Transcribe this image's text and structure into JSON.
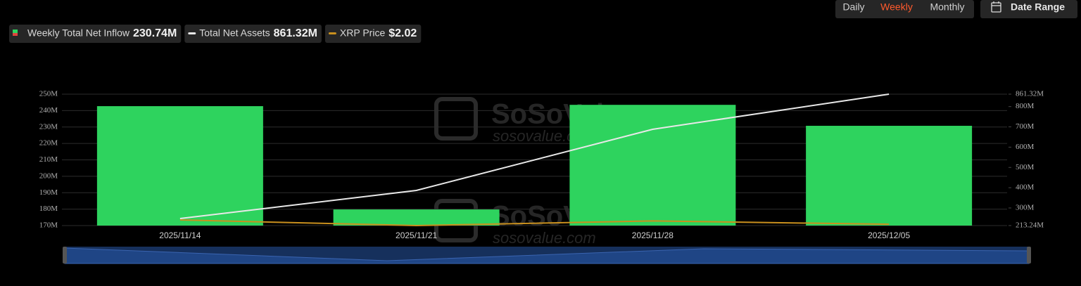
{
  "controls": {
    "periods": [
      "Daily",
      "Weekly",
      "Monthly"
    ],
    "active_index": 1,
    "date_range": "Date Range"
  },
  "chart_data": {
    "type": "combo",
    "watermark": {
      "brand": "SoSoValue",
      "site": "sosovalue.com"
    },
    "categories": [
      "2025/11/14",
      "2025/11/21",
      "2025/11/28",
      "2025/12/05"
    ],
    "series": [
      {
        "name": "Weekly Total Net Inflow",
        "legend_value": "230.74M",
        "type": "bar",
        "color": "#2ed35e",
        "values": [
          242.7,
          179.8,
          243.5,
          230.74
        ]
      },
      {
        "name": "Total Net Assets",
        "legend_value": "861.32M",
        "type": "line",
        "axis": "y2",
        "color": "#e8e8e8",
        "values": [
          248,
          386.5,
          688,
          861.32
        ]
      },
      {
        "name": "XRP Price",
        "legend_value": "$2.02",
        "type": "line",
        "axis": "y3",
        "color": "#c9901e",
        "values": [
          2.25,
          1.95,
          2.2,
          2.02
        ]
      }
    ],
    "ylim": [
      170,
      250
    ],
    "yticks": [
      {
        "value": 170,
        "label": "170M"
      },
      {
        "value": 180,
        "label": "180M"
      },
      {
        "value": 190,
        "label": "190M"
      },
      {
        "value": 200,
        "label": "200M"
      },
      {
        "value": 210,
        "label": "210M"
      },
      {
        "value": 220,
        "label": "220M"
      },
      {
        "value": 230,
        "label": "230M"
      },
      {
        "value": 240,
        "label": "240M"
      },
      {
        "value": 250,
        "label": "250M"
      }
    ],
    "y2lim": [
      213.24,
      861.32
    ],
    "y2ticks": [
      {
        "value": 213.24,
        "label": "213.24M"
      },
      {
        "value": 300,
        "label": "300M"
      },
      {
        "value": 400,
        "label": "400M"
      },
      {
        "value": 500,
        "label": "500M"
      },
      {
        "value": 600,
        "label": "600M"
      },
      {
        "value": 700,
        "label": "700M"
      },
      {
        "value": 800,
        "label": "800M"
      },
      {
        "value": 861.32,
        "label": "861.32M"
      }
    ],
    "y3lim": [
      1.95,
      9
    ],
    "grid": true
  }
}
